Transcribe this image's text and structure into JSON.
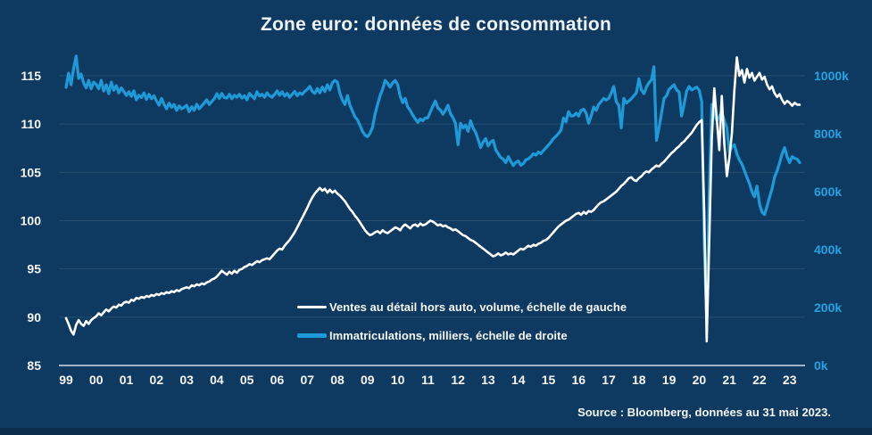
{
  "title": "Zone euro: données de consommation",
  "source": "Source : Bloomberg, données au 31 mai 2023.",
  "colors": {
    "background": "#0e3a61",
    "retail_line": "#ffffff",
    "registrations_line": "#1d9bd9",
    "right_axis_text": "#21a3e3",
    "left_axis_text": "#f4f6f8",
    "grid": "#3d5d7e",
    "axis_line": "#9fb3c8"
  },
  "legend": [
    {
      "label": "Ventes au détail hors auto, volume, échelle de gauche",
      "color": "#ffffff"
    },
    {
      "label": "Immatriculations, milliers, échelle de droite",
      "color": "#1d9bd9"
    }
  ],
  "chart_data": {
    "type": "line",
    "title": "Zone euro: données de consommation",
    "frequency": "monthly",
    "x_start": "1999-01",
    "x_end": "2023-05",
    "x_tick_labels": [
      "99",
      "00",
      "01",
      "02",
      "03",
      "04",
      "05",
      "06",
      "07",
      "08",
      "09",
      "10",
      "11",
      "12",
      "13",
      "14",
      "15",
      "16",
      "17",
      "18",
      "19",
      "20",
      "21",
      "22",
      "23"
    ],
    "left_axis": {
      "min": 85,
      "max": 115,
      "ticks": [
        {
          "value": 85,
          "label": "85"
        },
        {
          "value": 90,
          "label": "90"
        },
        {
          "value": 95,
          "label": "95"
        },
        {
          "value": 100,
          "label": "100"
        },
        {
          "value": 105,
          "label": "105"
        },
        {
          "value": 110,
          "label": "110"
        },
        {
          "value": 115,
          "label": "115"
        }
      ]
    },
    "right_axis": {
      "min": 0,
      "max": 1000,
      "ticks": [
        {
          "value": 0,
          "label": "0k"
        },
        {
          "value": 200,
          "label": "200k"
        },
        {
          "value": 400,
          "label": "400k"
        },
        {
          "value": 600,
          "label": "600k"
        },
        {
          "value": 800,
          "label": "800k"
        },
        {
          "value": 1000,
          "label": "1000k"
        }
      ]
    },
    "grid": "horizontal",
    "legend_position": "inside-bottom-center",
    "series": [
      {
        "name": "Ventes au détail hors auto, volume, échelle de gauche",
        "axis": "left",
        "color": "#ffffff",
        "values": [
          89.9,
          89.3,
          88.6,
          88.2,
          89.2,
          89.7,
          89.3,
          89.1,
          89.6,
          89.3,
          89.7,
          89.9,
          90.1,
          90.4,
          90.2,
          90.5,
          90.8,
          90.6,
          90.9,
          91.1,
          91.0,
          91.3,
          91.2,
          91.5,
          91.6,
          91.5,
          91.8,
          91.7,
          92.0,
          91.9,
          92.1,
          92.0,
          92.2,
          92.1,
          92.3,
          92.2,
          92.4,
          92.3,
          92.5,
          92.4,
          92.6,
          92.5,
          92.7,
          92.6,
          92.8,
          92.7,
          92.9,
          93.0,
          93.1,
          93.0,
          93.3,
          93.2,
          93.4,
          93.3,
          93.5,
          93.4,
          93.6,
          93.7,
          93.9,
          94.0,
          94.2,
          94.5,
          94.8,
          94.6,
          94.4,
          94.7,
          94.5,
          94.8,
          94.6,
          94.9,
          95.0,
          95.2,
          95.3,
          95.5,
          95.4,
          95.6,
          95.8,
          95.7,
          95.9,
          96.0,
          96.1,
          96.0,
          96.3,
          96.6,
          96.9,
          97.1,
          97.0,
          97.4,
          97.7,
          98.0,
          98.4,
          98.8,
          99.3,
          99.8,
          100.3,
          100.8,
          101.3,
          101.9,
          102.4,
          102.8,
          103.1,
          103.4,
          103.1,
          103.3,
          102.9,
          103.2,
          102.9,
          103.1,
          102.8,
          102.6,
          102.3,
          102.0,
          101.6,
          101.2,
          100.9,
          100.5,
          100.2,
          99.8,
          99.4,
          99.0,
          98.7,
          98.5,
          98.6,
          98.8,
          98.9,
          98.7,
          99.0,
          98.8,
          98.7,
          98.9,
          99.1,
          99.3,
          99.2,
          99.0,
          99.4,
          99.6,
          99.4,
          99.2,
          99.5,
          99.6,
          99.4,
          99.7,
          99.5,
          99.6,
          99.8,
          100.0,
          99.9,
          99.7,
          99.5,
          99.6,
          99.4,
          99.5,
          99.3,
          99.2,
          99.0,
          99.1,
          98.9,
          98.7,
          98.5,
          98.4,
          98.2,
          98.0,
          97.9,
          97.7,
          97.5,
          97.3,
          97.1,
          96.9,
          96.7,
          96.5,
          96.3,
          96.4,
          96.6,
          96.4,
          96.5,
          96.7,
          96.5,
          96.6,
          96.5,
          96.7,
          96.9,
          97.1,
          97.0,
          97.2,
          97.4,
          97.3,
          97.5,
          97.4,
          97.6,
          97.7,
          97.9,
          98.0,
          98.2,
          98.5,
          98.8,
          99.1,
          99.4,
          99.6,
          99.8,
          100.0,
          100.1,
          100.3,
          100.5,
          100.7,
          100.8,
          100.6,
          100.9,
          100.7,
          101.0,
          100.9,
          101.1,
          101.4,
          101.7,
          101.9,
          102.0,
          102.2,
          102.4,
          102.6,
          102.8,
          103.0,
          103.3,
          103.6,
          103.8,
          104.1,
          104.4,
          104.5,
          104.2,
          104.1,
          104.4,
          104.6,
          104.9,
          105.1,
          105.0,
          105.3,
          105.5,
          105.7,
          105.6,
          105.9,
          106.1,
          106.4,
          106.7,
          107.0,
          107.2,
          107.5,
          107.7,
          108.0,
          108.2,
          108.5,
          108.8,
          109.1,
          109.5,
          109.9,
          110.2,
          110.4,
          101.0,
          87.5,
          98.0,
          108.5,
          113.7,
          110.5,
          107.3,
          112.9,
          108.0,
          104.6,
          106.5,
          109.0,
          113.5,
          116.9,
          115.0,
          115.6,
          114.3,
          115.7,
          114.8,
          115.3,
          114.5,
          114.9,
          115.3,
          114.6,
          114.9,
          114.1,
          113.6,
          113.9,
          113.2,
          112.8,
          113.1,
          112.5,
          112.1,
          112.4,
          112.2,
          111.9,
          112.2,
          112.0,
          112.0
        ]
      },
      {
        "name": "Immatriculations, milliers, échelle de droite",
        "axis": "right",
        "color": "#1d9bd9",
        "values": [
          960,
          1009,
          969,
          1025,
          1068,
          991,
          1006,
          975,
          958,
          984,
          955,
          978,
          970,
          955,
          984,
          947,
          969,
          938,
          978,
          950,
          966,
          941,
          958,
          946,
          932,
          945,
          929,
          948,
          917,
          933,
          925,
          941,
          918,
          936,
          921,
          931,
          913,
          898,
          922,
          902,
          886,
          906,
          891,
          901,
          881,
          896,
          886,
          891,
          898,
          876,
          893,
          881,
          902,
          886,
          896,
          906,
          917,
          901,
          911,
          921,
          938,
          922,
          939,
          925,
          923,
          936,
          921,
          933,
          926,
          936,
          923,
          931,
          917,
          939,
          930,
          921,
          945,
          930,
          936,
          926,
          941,
          931,
          926,
          936,
          948,
          933,
          945,
          930,
          939,
          926,
          936,
          946,
          931,
          941,
          936,
          946,
          953,
          963,
          946,
          939,
          956,
          941,
          961,
          946,
          969,
          951,
          976,
          984,
          978,
          940,
          916,
          901,
          932,
          898,
          878,
          858,
          848,
          828,
          808,
          795,
          790,
          802,
          822,
          870,
          902,
          932,
          953,
          984,
          974,
          961,
          976,
          984,
          969,
          929,
          907,
          922,
          892,
          880,
          864,
          851,
          839,
          851,
          845,
          854,
          855,
          876,
          895,
          913,
          889,
          882,
          867,
          881,
          898,
          869,
          855,
          836,
          762,
          836,
          820,
          830,
          808,
          845,
          820,
          805,
          780,
          752,
          771,
          783,
          758,
          771,
          777,
          745,
          731,
          718,
          712,
          700,
          721,
          705,
          690,
          701,
          706,
          691,
          697,
          710,
          713,
          721,
          731,
          726,
          737,
          731,
          742,
          751,
          761,
          771,
          783,
          791,
          801,
          813,
          854,
          841,
          876,
          861,
          862,
          871,
          861,
          881,
          885,
          871,
          836,
          861,
          892,
          881,
          901,
          911,
          922,
          916,
          922,
          941,
          963,
          910,
          898,
          820,
          922,
          906,
          913,
          921,
          931,
          941,
          990,
          951,
          938,
          961,
          976,
          986,
          1031,
          777,
          821,
          871,
          922,
          931,
          953,
          961,
          969,
          951,
          944,
          861,
          901,
          947,
          963,
          951,
          956,
          961,
          950,
          910,
          420,
          158,
          620,
          901,
          870,
          845,
          860,
          876,
          845,
          820,
          737,
          755,
          762,
          730,
          710,
          695,
          672,
          650,
          628,
          600,
          582,
          619,
          557,
          529,
          521,
          550,
          580,
          610,
          650,
          672,
          700,
          731,
          752,
          720,
          700,
          721,
          715,
          712,
          700
        ]
      }
    ]
  }
}
